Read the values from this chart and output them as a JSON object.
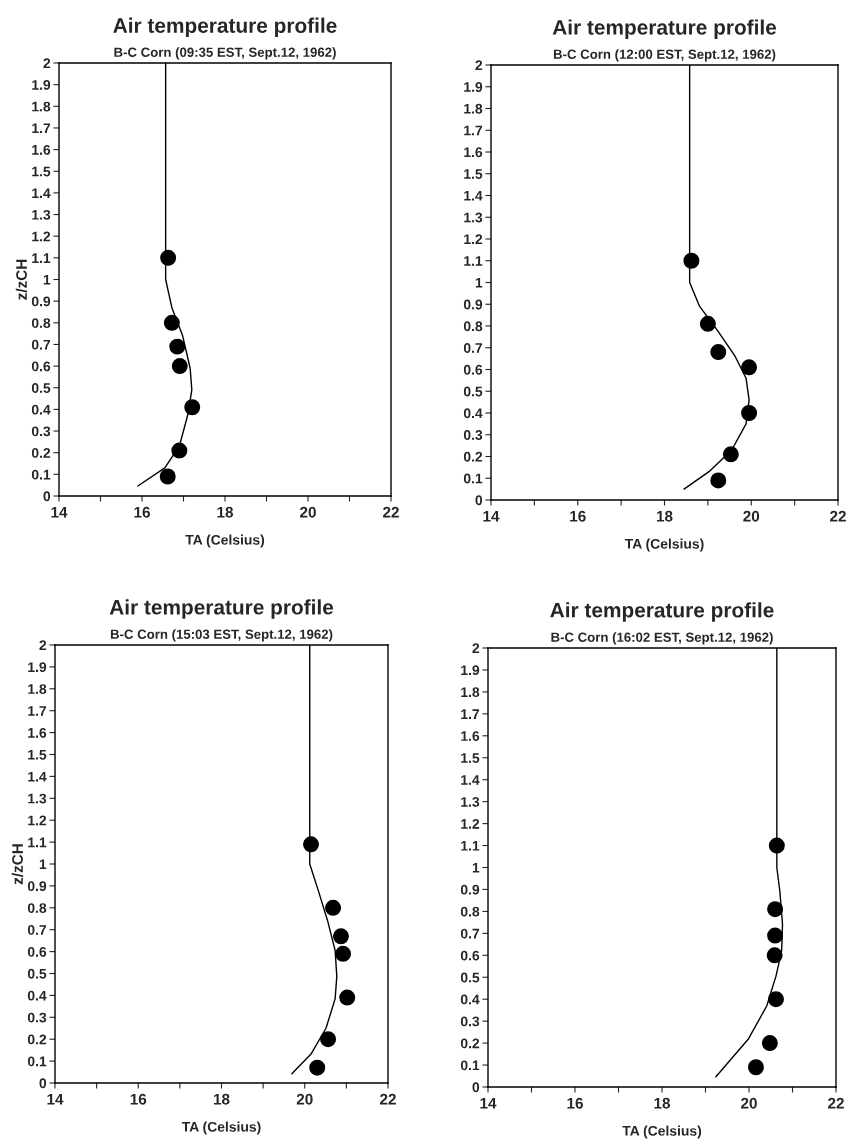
{
  "chart_data": [
    {
      "type": "line",
      "title": "Air temperature profile",
      "subtitle": "B-C Corn (09:35 EST, Sept.12, 1962)",
      "xlabel": "TA (Celsius)",
      "ylabel": "z/zCH",
      "xlim": [
        14,
        22
      ],
      "xticks": [
        14,
        {
          "value": 15,
          "label": null
        },
        16,
        {
          "value": 17,
          "label": null
        },
        18,
        {
          "value": 19,
          "label": null
        },
        20,
        {
          "value": 21,
          "label": null
        },
        22
      ],
      "ylim": [
        0,
        2
      ],
      "yticks": [
        0,
        0.1,
        0.2,
        0.3,
        0.4,
        0.5,
        0.6,
        0.7,
        0.8,
        0.9,
        1,
        1.1,
        1.2,
        1.3,
        1.4,
        1.5,
        1.6,
        1.7,
        1.8,
        1.9,
        2
      ],
      "series": [
        {
          "color": "#000000",
          "marker": "none",
          "x": [
            16.57,
            16.57,
            16.72,
            16.98,
            17.16,
            17.2,
            17.11,
            16.9,
            16.55,
            15.9
          ],
          "values": [
            2,
            1.0,
            0.87,
            0.74,
            0.59,
            0.49,
            0.38,
            0.23,
            0.13,
            0.046
          ]
        },
        {
          "type": "scatter",
          "color": "#000000",
          "marker": "circle",
          "x": [
            16.63,
            16.72,
            16.85,
            16.91,
            17.21,
            16.9,
            16.62
          ],
          "values": [
            1.1,
            0.8,
            0.69,
            0.6,
            0.41,
            0.21,
            0.09
          ]
        }
      ]
    },
    {
      "type": "line",
      "title": "Air temperature profile",
      "subtitle": "B-C Corn (12:00 EST, Sept.12, 1962)",
      "xlabel": "TA (Celsius)",
      "xlim": [
        14,
        22
      ],
      "xticks": [
        14,
        {
          "value": 15,
          "label": null
        },
        16,
        {
          "value": 17,
          "label": null
        },
        18,
        {
          "value": 19,
          "label": null
        },
        20,
        {
          "value": 21,
          "label": null
        },
        22
      ],
      "ylim": [
        0,
        2
      ],
      "yticks": [
        0,
        0.1,
        0.2,
        0.3,
        0.4,
        0.5,
        0.6,
        0.7,
        0.8,
        0.9,
        1,
        1.1,
        1.2,
        1.3,
        1.4,
        1.5,
        1.6,
        1.7,
        1.8,
        1.9,
        2
      ],
      "series": [
        {
          "color": "#000000",
          "marker": "none",
          "x": [
            18.58,
            18.58,
            18.81,
            19.22,
            19.63,
            19.88,
            19.95,
            19.88,
            19.55,
            19.05,
            18.45
          ],
          "values": [
            2,
            1.0,
            0.89,
            0.78,
            0.66,
            0.56,
            0.46,
            0.35,
            0.23,
            0.134,
            0.05
          ]
        },
        {
          "type": "scatter",
          "color": "#000000",
          "marker": "circle",
          "x": [
            18.62,
            19.0,
            19.24,
            19.95,
            19.95,
            19.53,
            19.24
          ],
          "values": [
            1.1,
            0.81,
            0.68,
            0.61,
            0.4,
            0.21,
            0.09
          ]
        }
      ]
    },
    {
      "type": "line",
      "title": "Air temperature profile",
      "subtitle": "B-C Corn (15:03 EST, Sept.12, 1962)",
      "xlabel": "TA (Celsius)",
      "ylabel": "z/zCH",
      "xlim": [
        14,
        22
      ],
      "xticks": [
        14,
        {
          "value": 15,
          "label": null
        },
        16,
        {
          "value": 17,
          "label": null
        },
        18,
        {
          "value": 19,
          "label": null
        },
        20,
        {
          "value": 21,
          "label": null
        },
        22
      ],
      "ylim": [
        0,
        2
      ],
      "yticks": [
        0,
        0.1,
        0.2,
        0.3,
        0.4,
        0.5,
        0.6,
        0.7,
        0.8,
        0.9,
        1,
        1.1,
        1.2,
        1.3,
        1.4,
        1.5,
        1.6,
        1.7,
        1.8,
        1.9,
        2
      ],
      "series": [
        {
          "color": "#000000",
          "marker": "none",
          "x": [
            20.12,
            20.12,
            20.33,
            20.55,
            20.73,
            20.77,
            20.73,
            20.51,
            20.15,
            19.69
          ],
          "values": [
            2,
            1.0,
            0.876,
            0.74,
            0.605,
            0.487,
            0.385,
            0.25,
            0.132,
            0.042
          ]
        },
        {
          "type": "scatter",
          "color": "#000000",
          "marker": "circle",
          "x": [
            20.15,
            20.68,
            20.87,
            20.92,
            21.02,
            20.56,
            20.3
          ],
          "values": [
            1.09,
            0.8,
            0.67,
            0.59,
            0.39,
            0.2,
            0.07
          ]
        }
      ]
    },
    {
      "type": "line",
      "title": "Air temperature profile",
      "subtitle": "B-C Corn (16:02 EST, Sept.12, 1962)",
      "xlabel": "TA (Celsius)",
      "xlim": [
        14,
        22
      ],
      "xticks": [
        14,
        {
          "value": 15,
          "label": null
        },
        16,
        {
          "value": 17,
          "label": null
        },
        18,
        {
          "value": 19,
          "label": null
        },
        20,
        {
          "value": 21,
          "label": null
        },
        22
      ],
      "ylim": [
        0,
        2
      ],
      "yticks": [
        0,
        0.1,
        0.2,
        0.3,
        0.4,
        0.5,
        0.6,
        0.7,
        0.8,
        0.9,
        1,
        1.1,
        1.2,
        1.3,
        1.4,
        1.5,
        1.6,
        1.7,
        1.8,
        1.9,
        2
      ],
      "series": [
        {
          "color": "#000000",
          "marker": "none",
          "x": [
            20.64,
            20.64,
            20.71,
            20.77,
            20.75,
            20.62,
            20.41,
            19.99,
            19.24
          ],
          "values": [
            2,
            1.0,
            0.89,
            0.74,
            0.62,
            0.505,
            0.37,
            0.22,
            0.047
          ]
        },
        {
          "type": "scatter",
          "color": "#000000",
          "marker": "circle",
          "x": [
            20.64,
            20.6,
            20.6,
            20.59,
            20.62,
            20.48,
            20.16
          ],
          "values": [
            1.1,
            0.81,
            0.69,
            0.6,
            0.4,
            0.2,
            0.09
          ]
        }
      ]
    }
  ]
}
